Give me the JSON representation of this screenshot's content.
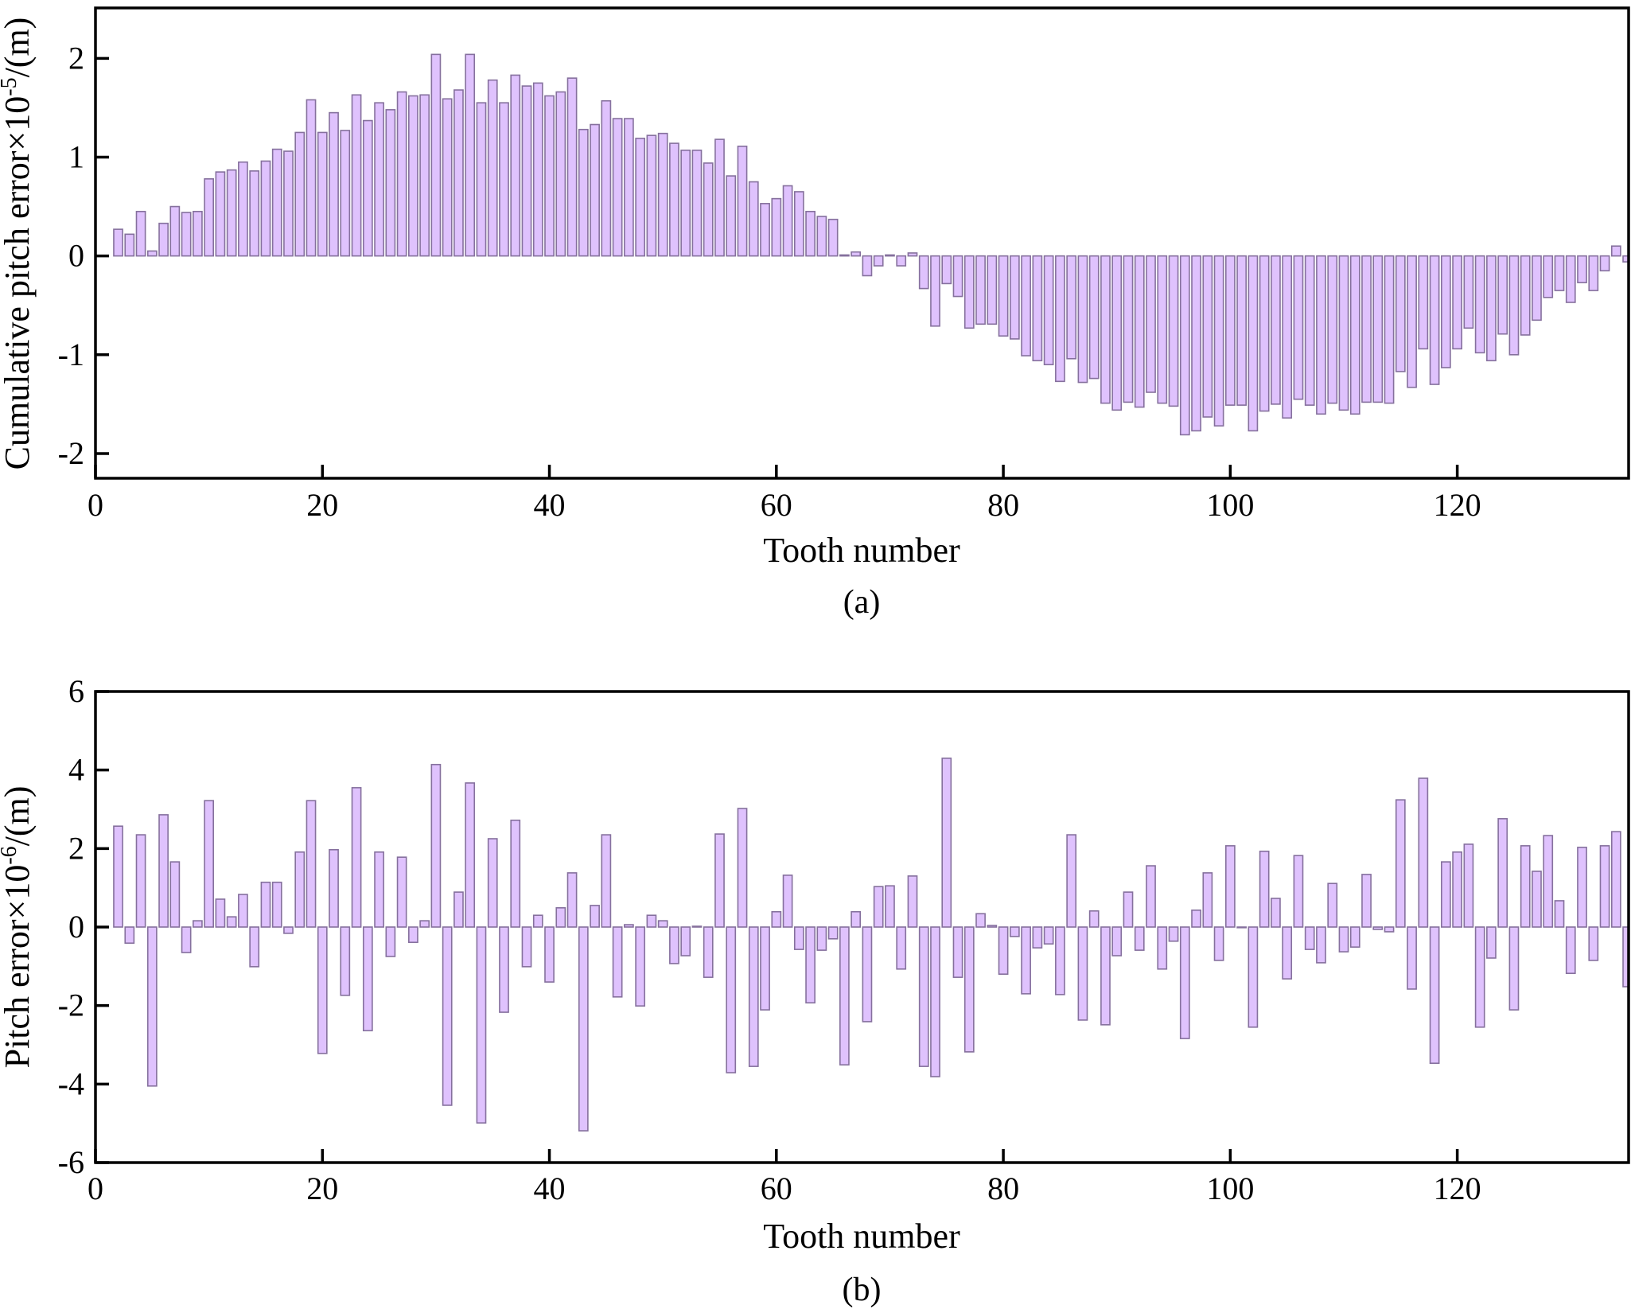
{
  "chart_data": [
    {
      "type": "bar",
      "caption": "(a)",
      "title": "",
      "xlabel": "Tooth number",
      "ylabel": {
        "main": "Cumulative pitch error×10",
        "sup": "-5",
        "unit": "/(m)"
      },
      "xlim": [
        0,
        135.1
      ],
      "ylim": [
        -2.25,
        2.51
      ],
      "xticks": [
        0,
        20,
        40,
        60,
        80,
        100,
        120
      ],
      "yticks": [
        -2,
        -1,
        0,
        1,
        2
      ],
      "grid": false,
      "bar_color": "#dfc2fd",
      "bar_edge_color": "#85709d",
      "x_start": 2,
      "values": [
        0.27,
        0.22,
        0.45,
        0.05,
        0.33,
        0.5,
        0.44,
        0.45,
        0.78,
        0.85,
        0.87,
        0.95,
        0.86,
        0.96,
        1.08,
        1.06,
        1.25,
        1.58,
        1.25,
        1.45,
        1.27,
        1.63,
        1.37,
        1.55,
        1.48,
        1.66,
        1.62,
        1.63,
        2.04,
        1.59,
        1.68,
        2.04,
        1.55,
        1.78,
        1.55,
        1.83,
        1.72,
        1.75,
        1.62,
        1.66,
        1.8,
        1.28,
        1.33,
        1.57,
        1.39,
        1.39,
        1.19,
        1.22,
        1.24,
        1.14,
        1.07,
        1.07,
        0.94,
        1.18,
        0.81,
        1.11,
        0.75,
        0.53,
        0.58,
        0.71,
        0.65,
        0.45,
        0.4,
        0.37,
        0.01,
        0.04,
        -0.2,
        -0.1,
        0.01,
        -0.1,
        0.03,
        -0.33,
        -0.71,
        -0.28,
        -0.41,
        -0.73,
        -0.69,
        -0.69,
        -0.81,
        -0.84,
        -1.01,
        -1.06,
        -1.1,
        -1.27,
        -1.04,
        -1.28,
        -1.24,
        -1.49,
        -1.56,
        -1.48,
        -1.53,
        -1.38,
        -1.49,
        -1.52,
        -1.81,
        -1.77,
        -1.63,
        -1.72,
        -1.51,
        -1.51,
        -1.77,
        -1.57,
        -1.5,
        -1.64,
        -1.45,
        -1.51,
        -1.6,
        -1.49,
        -1.56,
        -1.6,
        -1.48,
        -1.48,
        -1.49,
        -1.17,
        -1.33,
        -0.94,
        -1.3,
        -1.13,
        -0.94,
        -0.73,
        -0.98,
        -1.06,
        -0.79,
        -1.0,
        -0.8,
        -0.65,
        -0.42,
        -0.35,
        -0.47,
        -0.27,
        -0.35,
        -0.15,
        0.1,
        -0.06
      ]
    },
    {
      "type": "bar",
      "caption": "(b)",
      "title": "",
      "xlabel": "Tooth number",
      "ylabel": {
        "main": "Pitch error×10",
        "sup": "-6",
        "unit": "/(m)"
      },
      "xlim": [
        0,
        135.1
      ],
      "ylim": [
        -6,
        6
      ],
      "xticks": [
        0,
        20,
        40,
        60,
        80,
        100,
        120
      ],
      "yticks": [
        -6,
        -4,
        -2,
        0,
        2,
        4,
        6
      ],
      "grid": false,
      "bar_color": "#dfc2fd",
      "bar_edge_color": "#85709d",
      "x_start": 2,
      "values": [
        2.57,
        -0.41,
        2.35,
        -4.05,
        2.86,
        1.66,
        -0.65,
        0.16,
        3.22,
        0.71,
        0.26,
        0.83,
        -1.01,
        1.14,
        1.14,
        -0.16,
        1.91,
        3.22,
        -3.22,
        1.97,
        -1.74,
        3.55,
        -2.64,
        1.91,
        -0.75,
        1.78,
        -0.39,
        0.16,
        4.14,
        -4.54,
        0.89,
        3.67,
        -4.99,
        2.25,
        -2.17,
        2.72,
        -1.01,
        0.3,
        -1.4,
        0.49,
        1.38,
        -5.19,
        0.55,
        2.35,
        -1.78,
        0.06,
        -2.01,
        0.3,
        0.16,
        -0.93,
        -0.73,
        0.02,
        -1.28,
        2.37,
        -3.71,
        3.02,
        -3.55,
        -2.11,
        0.39,
        1.32,
        -0.57,
        -1.93,
        -0.59,
        -0.3,
        -3.51,
        0.39,
        -2.41,
        1.03,
        1.05,
        -1.07,
        1.3,
        -3.55,
        -3.81,
        4.3,
        -1.28,
        -3.18,
        0.34,
        0.04,
        -1.2,
        -0.24,
        -1.7,
        -0.53,
        -0.43,
        -1.72,
        2.35,
        -2.37,
        0.41,
        -2.49,
        -0.73,
        0.89,
        -0.59,
        1.56,
        -1.07,
        -0.36,
        -2.84,
        0.43,
        1.38,
        -0.85,
        2.07,
        0.0,
        -2.55,
        1.93,
        0.73,
        -1.32,
        1.82,
        -0.57,
        -0.91,
        1.11,
        -0.63,
        -0.51,
        1.34,
        -0.06,
        -0.12,
        3.24,
        -1.58,
        3.79,
        -3.47,
        1.66,
        1.91,
        2.11,
        -2.55,
        -0.79,
        2.76,
        -2.11,
        2.07,
        1.42,
        2.33,
        0.67,
        -1.18,
        2.03,
        -0.85,
        2.07,
        2.43,
        -1.52
      ]
    }
  ]
}
